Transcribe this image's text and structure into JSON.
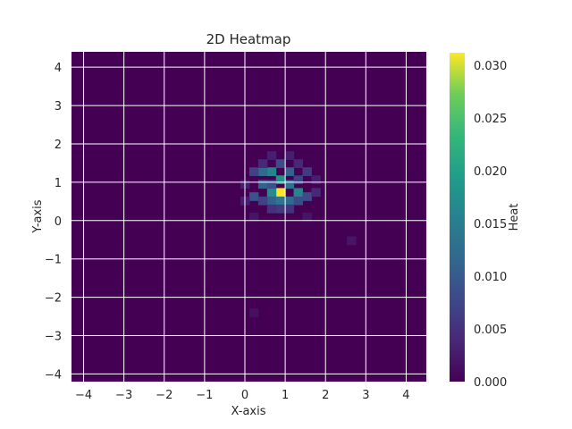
{
  "chart_data": {
    "type": "heatmap",
    "title": "2D Heatmap",
    "xlabel": "X-axis",
    "ylabel": "Y-axis",
    "xlim": [
      -4.3,
      4.5
    ],
    "ylim": [
      -4.2,
      4.4
    ],
    "xticks": [
      -4,
      -3,
      -2,
      -1,
      0,
      1,
      2,
      3,
      4
    ],
    "yticks": [
      -4,
      -3,
      -2,
      -1,
      0,
      1,
      2,
      3,
      4
    ],
    "grid": true,
    "colormap": "viridis",
    "bins": 40,
    "colorbar": {
      "label": "Heat",
      "min": 0.0,
      "max": 0.0312,
      "ticks": [
        0.0,
        0.005,
        0.01,
        0.015,
        0.02,
        0.025,
        0.03
      ],
      "tick_labels": [
        "0.000",
        "0.005",
        "0.010",
        "0.015",
        "0.020",
        "0.025",
        "0.030"
      ]
    },
    "hot_cells": [
      {
        "x": 0.88,
        "y": 0.74,
        "value": 0.0312
      },
      {
        "x": 0.88,
        "y": 1.07,
        "value": 0.018
      },
      {
        "x": 0.66,
        "y": 0.74,
        "value": 0.017
      },
      {
        "x": 1.32,
        "y": 0.74,
        "value": 0.016
      },
      {
        "x": 0.66,
        "y": 1.28,
        "value": 0.016
      },
      {
        "x": 1.1,
        "y": 0.95,
        "value": 0.013
      },
      {
        "x": 0.44,
        "y": 0.95,
        "value": 0.011
      },
      {
        "x": 1.1,
        "y": 0.52,
        "value": 0.012
      },
      {
        "x": 0.66,
        "y": 0.52,
        "value": 0.011
      },
      {
        "x": 0.44,
        "y": 1.28,
        "value": 0.012
      },
      {
        "x": 1.1,
        "y": 1.28,
        "value": 0.011
      },
      {
        "x": 0.88,
        "y": 0.52,
        "value": 0.014
      },
      {
        "x": 0.22,
        "y": 0.63,
        "value": 0.009
      },
      {
        "x": 1.54,
        "y": 0.63,
        "value": 0.008
      },
      {
        "x": 0.88,
        "y": 1.49,
        "value": 0.008
      },
      {
        "x": 0.22,
        "y": 1.28,
        "value": 0.007
      },
      {
        "x": 1.54,
        "y": 1.28,
        "value": 0.006
      },
      {
        "x": 1.32,
        "y": 1.07,
        "value": 0.007
      },
      {
        "x": 0.44,
        "y": 0.52,
        "value": 0.007
      },
      {
        "x": 1.32,
        "y": 0.52,
        "value": 0.008
      },
      {
        "x": 0.66,
        "y": 0.95,
        "value": 0.009
      },
      {
        "x": 0.88,
        "y": 0.31,
        "value": 0.006
      },
      {
        "x": 0.66,
        "y": 0.31,
        "value": 0.005
      },
      {
        "x": 1.1,
        "y": 0.31,
        "value": 0.005
      },
      {
        "x": 0.44,
        "y": 1.49,
        "value": 0.004
      },
      {
        "x": 1.32,
        "y": 1.49,
        "value": 0.004
      },
      {
        "x": 0.66,
        "y": 1.7,
        "value": 0.003
      },
      {
        "x": 1.1,
        "y": 1.7,
        "value": 0.003
      },
      {
        "x": 1.76,
        "y": 1.07,
        "value": 0.003
      },
      {
        "x": 0.0,
        "y": 0.95,
        "value": 0.003
      },
      {
        "x": 1.76,
        "y": 0.74,
        "value": 0.004
      },
      {
        "x": 0.0,
        "y": 0.52,
        "value": 0.003
      },
      {
        "x": 0.22,
        "y": 0.1,
        "value": 0.002
      },
      {
        "x": 1.54,
        "y": 0.1,
        "value": 0.002
      },
      {
        "x": 2.64,
        "y": -0.52,
        "value": 0.002
      },
      {
        "x": 0.22,
        "y": -2.4,
        "value": 0.0015
      }
    ]
  }
}
